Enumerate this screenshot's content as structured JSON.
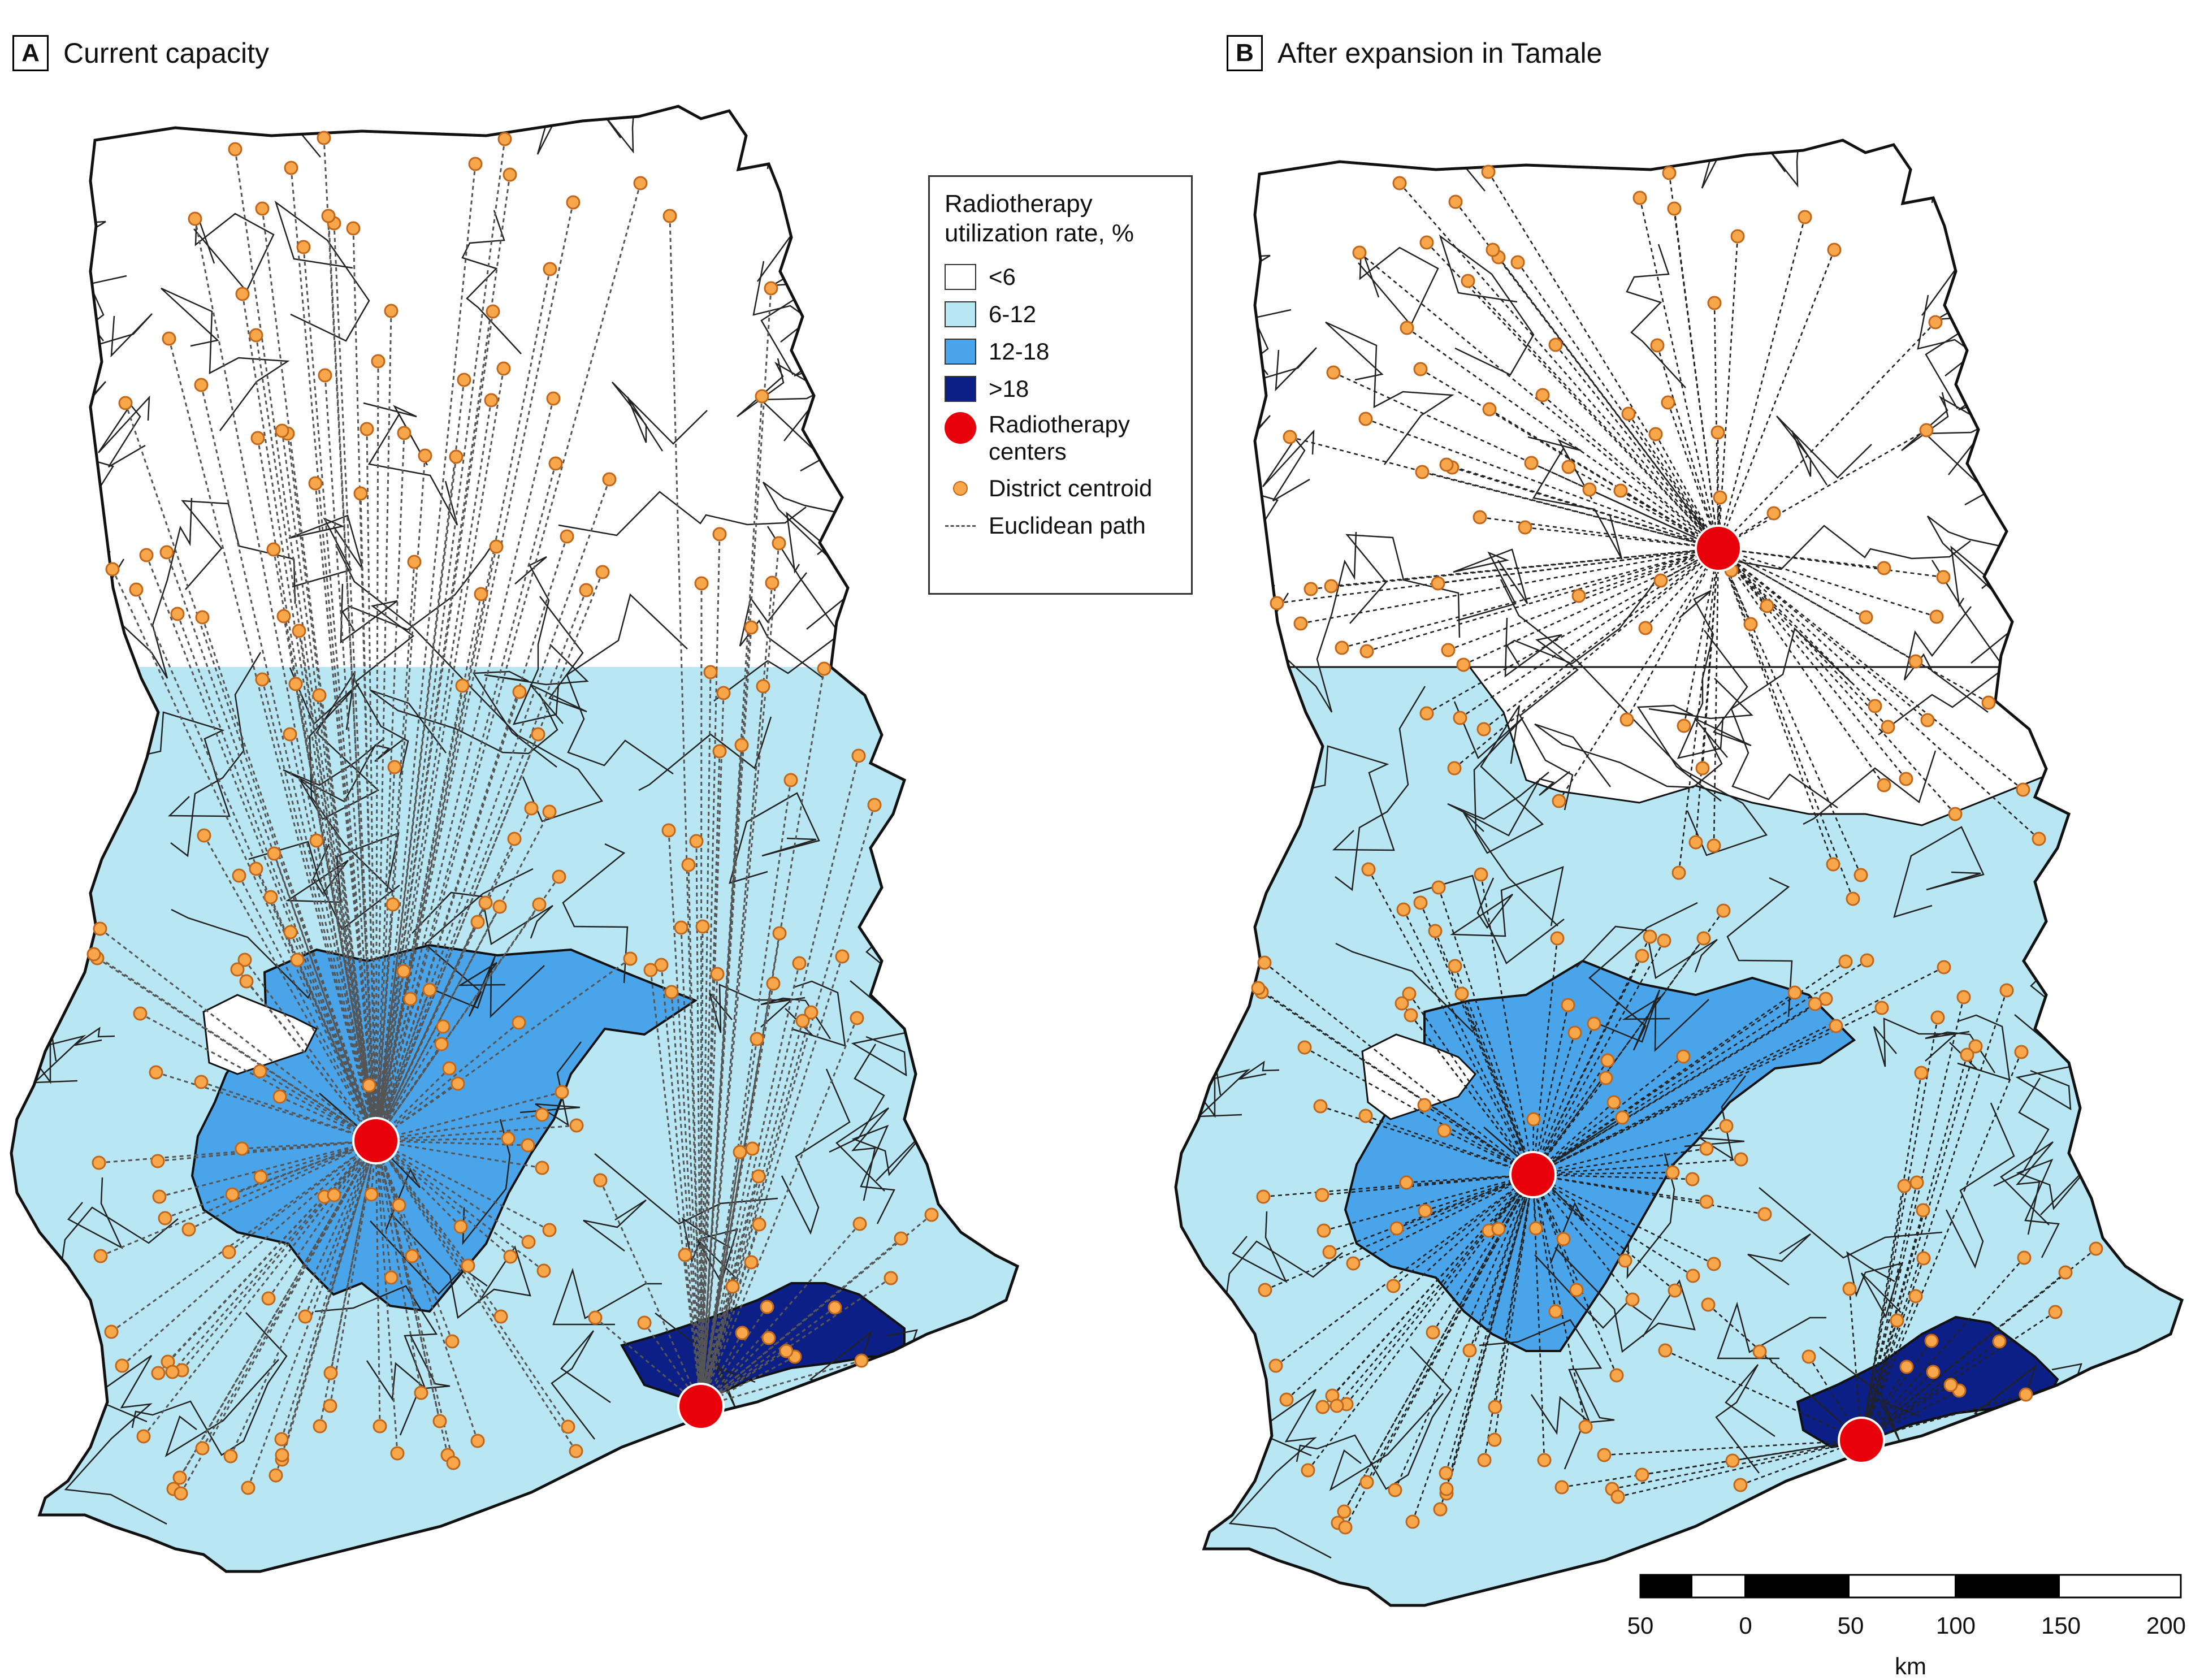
{
  "panels": [
    {
      "letter": "A",
      "title": "Current capacity"
    },
    {
      "letter": "B",
      "title": "After expansion in Tamale"
    }
  ],
  "legend": {
    "title_line1": "Radiotherapy",
    "title_line2": "utilization rate, %",
    "classes": [
      {
        "label": "<6",
        "color": "#ffffff"
      },
      {
        "label": "6-12",
        "color": "#b8e7f3"
      },
      {
        "label": "12-18",
        "color": "#4aa4ea"
      },
      {
        "label": ">18",
        "color": "#0b1f86"
      }
    ],
    "centers_line1": "Radiotherapy",
    "centers_line2": "centers",
    "centroid": "District centroid",
    "path": "Euclidean path"
  },
  "scale": {
    "ticks": [
      "50",
      "0",
      "50",
      "100",
      "150",
      "200"
    ],
    "unit": "km"
  },
  "colors": {
    "center": "#e8000b",
    "centroid_fill": "#f7a64a",
    "centroid_stroke": "#c0671c",
    "boundary": "#222222",
    "path": "#555555"
  },
  "icons": [
    "radiotherapy-center-icon",
    "district-centroid-icon",
    "euclidean-path-icon"
  ]
}
